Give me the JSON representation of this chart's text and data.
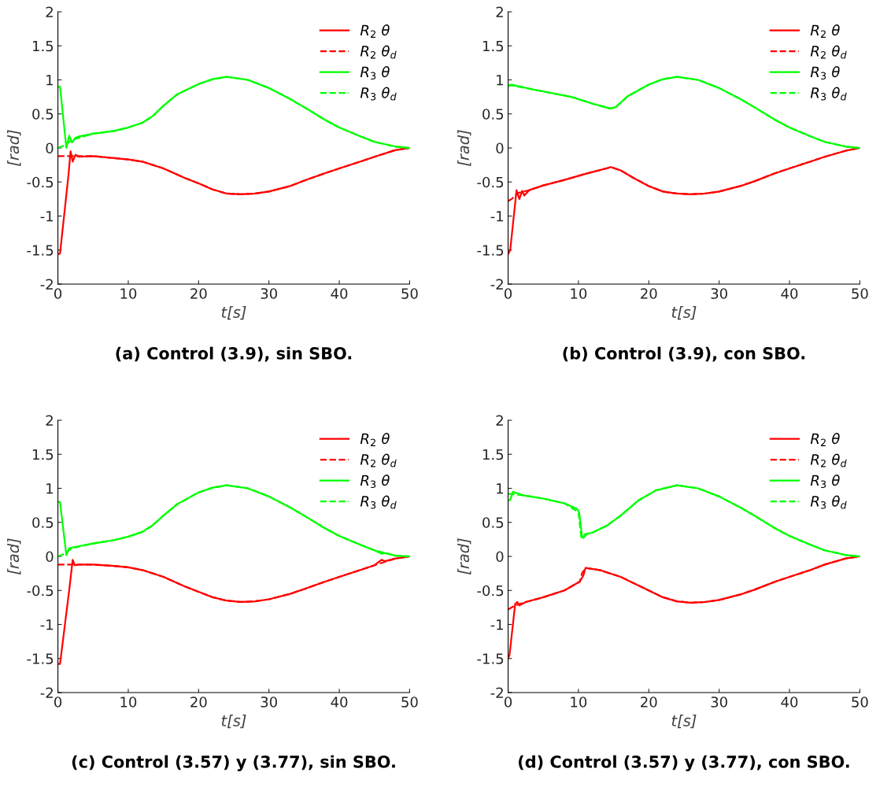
{
  "chart_data": [
    {
      "type": "line",
      "title": "(a) Control (3.9), sin SBO.",
      "xlabel": "t[s]",
      "ylabel": "[rad]",
      "xlim": [
        0,
        50
      ],
      "ylim": [
        -2,
        2
      ],
      "xticks": [
        0,
        10,
        20,
        30,
        40,
        50
      ],
      "yticks": [
        -2,
        -1.5,
        -1,
        -0.5,
        0,
        0.5,
        1,
        1.5,
        2
      ],
      "legend": "top right",
      "grid": false,
      "series": [
        {
          "name": "R$_{2}$ θ",
          "color": "#ff0000",
          "line_style": "solid",
          "x": [
            0,
            0.3,
            1.5,
            1.8,
            2.1,
            2.5,
            3,
            5,
            8,
            10,
            12,
            15,
            18,
            20,
            22,
            24,
            26,
            28,
            30,
            33,
            35,
            38,
            40,
            43,
            45,
            48,
            50
          ],
          "values": [
            -1.56,
            -1.55,
            -0.4,
            -0.05,
            -0.2,
            -0.1,
            -0.13,
            -0.12,
            -0.15,
            -0.17,
            -0.2,
            -0.3,
            -0.44,
            -0.52,
            -0.61,
            -0.67,
            -0.68,
            -0.67,
            -0.64,
            -0.56,
            -0.48,
            -0.37,
            -0.3,
            -0.2,
            -0.13,
            -0.03,
            0
          ]
        },
        {
          "name": "R$_{2}$ θ$_{d}$",
          "color": "#ff0000",
          "line_style": "dashed",
          "x": [
            0,
            2,
            5,
            8,
            10,
            12,
            15,
            18,
            20,
            22,
            24,
            26,
            28,
            30,
            33,
            35,
            38,
            40,
            43,
            45,
            48,
            50
          ],
          "values": [
            -0.12,
            -0.12,
            -0.12,
            -0.15,
            -0.17,
            -0.2,
            -0.3,
            -0.44,
            -0.52,
            -0.61,
            -0.67,
            -0.68,
            -0.67,
            -0.64,
            -0.56,
            -0.48,
            -0.37,
            -0.3,
            -0.2,
            -0.13,
            -0.03,
            0
          ]
        },
        {
          "name": "R$_{3}$ θ",
          "color": "#00ff00",
          "line_style": "solid",
          "x": [
            0,
            0.3,
            1.2,
            1.6,
            2,
            2.5,
            3,
            5,
            8,
            10,
            12,
            13.5,
            15,
            17,
            20,
            22,
            24,
            27,
            30,
            33,
            35,
            38,
            40,
            43,
            45,
            48,
            50
          ],
          "values": [
            0.9,
            0.9,
            0,
            0.18,
            0.08,
            0.15,
            0.17,
            0.21,
            0.25,
            0.3,
            0.37,
            0.47,
            0.62,
            0.79,
            0.94,
            1.01,
            1.045,
            1.0,
            0.88,
            0.72,
            0.6,
            0.41,
            0.3,
            0.17,
            0.09,
            0.02,
            0
          ]
        },
        {
          "name": "R$_{3}$ θ$_{d}$",
          "color": "#00ff00",
          "line_style": "dashed",
          "x": [
            0,
            1,
            2,
            5,
            8,
            10,
            12,
            13.5,
            15,
            17,
            20,
            22,
            24,
            27,
            30,
            33,
            35,
            38,
            40,
            43,
            45,
            48,
            50
          ],
          "values": [
            0,
            0.04,
            0.12,
            0.21,
            0.25,
            0.3,
            0.37,
            0.47,
            0.62,
            0.79,
            0.94,
            1.01,
            1.045,
            1.0,
            0.88,
            0.72,
            0.6,
            0.41,
            0.3,
            0.17,
            0.09,
            0.02,
            0
          ]
        }
      ]
    },
    {
      "type": "line",
      "title": "(b) Control (3.9), con SBO.",
      "xlabel": "t[s]",
      "ylabel": "[rad]",
      "xlim": [
        0,
        50
      ],
      "ylim": [
        -2,
        2
      ],
      "xticks": [
        0,
        10,
        20,
        30,
        40,
        50
      ],
      "yticks": [
        -2,
        -1.5,
        -1,
        -0.5,
        0,
        0.5,
        1,
        1.5,
        2
      ],
      "legend": "top right",
      "grid": false,
      "series": [
        {
          "name": "R$_{2}$ θ",
          "color": "#ff0000",
          "line_style": "solid",
          "x": [
            0,
            0.3,
            1.2,
            1.6,
            2,
            2.3,
            3,
            5,
            8,
            11,
            14,
            14.6,
            16,
            18,
            20,
            22,
            24,
            26,
            28,
            30,
            33,
            35,
            38,
            40,
            43,
            45,
            48,
            50
          ],
          "values": [
            -1.56,
            -1.5,
            -0.62,
            -0.75,
            -0.63,
            -0.7,
            -0.62,
            -0.55,
            -0.47,
            -0.38,
            -0.3,
            -0.28,
            -0.33,
            -0.45,
            -0.56,
            -0.64,
            -0.67,
            -0.68,
            -0.67,
            -0.64,
            -0.56,
            -0.49,
            -0.37,
            -0.3,
            -0.2,
            -0.13,
            -0.04,
            0
          ]
        },
        {
          "name": "R$_{2}$ θ$_{d}$",
          "color": "#ff0000",
          "line_style": "dashed",
          "x": [
            0,
            0.5,
            1.5,
            3,
            5,
            8,
            11,
            14,
            14.6,
            16,
            18,
            20,
            22,
            24,
            26,
            28,
            30,
            33,
            35,
            38,
            40,
            43,
            45,
            48,
            50
          ],
          "values": [
            -0.78,
            -0.75,
            -0.66,
            -0.62,
            -0.55,
            -0.47,
            -0.38,
            -0.3,
            -0.28,
            -0.33,
            -0.45,
            -0.56,
            -0.64,
            -0.67,
            -0.68,
            -0.67,
            -0.64,
            -0.56,
            -0.49,
            -0.37,
            -0.3,
            -0.2,
            -0.13,
            -0.04,
            0
          ]
        },
        {
          "name": "R$_{3}$ θ",
          "color": "#00ff00",
          "line_style": "solid",
          "x": [
            0,
            0.5,
            4,
            9,
            12,
            14.5,
            15.3,
            17,
            20,
            22,
            24,
            27,
            30,
            33,
            35,
            38,
            40,
            43,
            45,
            48,
            50
          ],
          "values": [
            0.92,
            0.93,
            0.85,
            0.75,
            0.65,
            0.58,
            0.6,
            0.76,
            0.93,
            1.01,
            1.045,
            1.0,
            0.88,
            0.72,
            0.6,
            0.41,
            0.3,
            0.17,
            0.09,
            0.02,
            0
          ]
        },
        {
          "name": "R$_{3}$ θ$_{d}$",
          "color": "#00ff00",
          "line_style": "dashed",
          "x": [
            0,
            0.5,
            4,
            9,
            12,
            14.5,
            15.3,
            17,
            20,
            22,
            24,
            27,
            30,
            33,
            35,
            38,
            40,
            43,
            45,
            48,
            50
          ],
          "values": [
            0.91,
            0.92,
            0.85,
            0.75,
            0.65,
            0.58,
            0.6,
            0.76,
            0.93,
            1.01,
            1.045,
            1.0,
            0.88,
            0.72,
            0.6,
            0.41,
            0.3,
            0.17,
            0.09,
            0.02,
            0
          ]
        }
      ]
    },
    {
      "type": "line",
      "title": "(c) Control (3.57) y (3.77), sin SBO.",
      "xlabel": "t[s]",
      "ylabel": "[rad]",
      "xlim": [
        0,
        50
      ],
      "ylim": [
        -2,
        2
      ],
      "xticks": [
        0,
        10,
        20,
        30,
        40,
        50
      ],
      "yticks": [
        -2,
        -1.5,
        -1,
        -0.5,
        0,
        0.5,
        1,
        1.5,
        2
      ],
      "legend": "top right",
      "grid": false,
      "series": [
        {
          "name": "R$_{2}$ θ",
          "color": "#ff0000",
          "line_style": "solid",
          "x": [
            0,
            0.3,
            1.6,
            2.1,
            2.4,
            3,
            5,
            8,
            10,
            12,
            15,
            18,
            20,
            22,
            24,
            26,
            28,
            30,
            33,
            35,
            38,
            40,
            43,
            45,
            46,
            46.5,
            48,
            50
          ],
          "values": [
            -1.58,
            -1.58,
            -0.5,
            -0.05,
            -0.13,
            -0.12,
            -0.12,
            -0.14,
            -0.16,
            -0.2,
            -0.3,
            -0.44,
            -0.52,
            -0.6,
            -0.65,
            -0.67,
            -0.66,
            -0.63,
            -0.55,
            -0.48,
            -0.37,
            -0.3,
            -0.2,
            -0.13,
            -0.05,
            -0.07,
            -0.03,
            0
          ]
        },
        {
          "name": "R$_{2}$ θ$_{d}$",
          "color": "#ff0000",
          "line_style": "dashed",
          "x": [
            0,
            2,
            5,
            8,
            10,
            12,
            15,
            18,
            20,
            22,
            24,
            26,
            28,
            30,
            33,
            35,
            38,
            40,
            43,
            45,
            48,
            50
          ],
          "values": [
            -0.12,
            -0.12,
            -0.12,
            -0.14,
            -0.16,
            -0.2,
            -0.3,
            -0.44,
            -0.52,
            -0.6,
            -0.65,
            -0.67,
            -0.66,
            -0.63,
            -0.55,
            -0.48,
            -0.37,
            -0.3,
            -0.2,
            -0.13,
            -0.03,
            0
          ]
        },
        {
          "name": "R$_{3}$ θ",
          "color": "#00ff00",
          "line_style": "solid",
          "x": [
            0,
            0.3,
            1.2,
            1.6,
            2,
            3,
            5,
            8,
            10,
            12,
            13.5,
            15,
            17,
            20,
            22,
            24,
            27,
            30,
            33,
            35,
            38,
            40,
            43,
            45,
            46,
            46.5,
            48,
            50
          ],
          "values": [
            0.8,
            0.8,
            0.02,
            0.12,
            0.13,
            0.15,
            0.19,
            0.24,
            0.29,
            0.36,
            0.46,
            0.6,
            0.77,
            0.94,
            1.01,
            1.045,
            1.0,
            0.88,
            0.72,
            0.6,
            0.41,
            0.3,
            0.17,
            0.09,
            0.04,
            0.05,
            0.01,
            0
          ]
        },
        {
          "name": "R$_{3}$ θ$_{d}$",
          "color": "#00ff00",
          "line_style": "dashed",
          "x": [
            0,
            1,
            2,
            5,
            8,
            10,
            12,
            13.5,
            15,
            17,
            20,
            22,
            24,
            27,
            30,
            33,
            35,
            38,
            40,
            43,
            45,
            48,
            50
          ],
          "values": [
            0,
            0.04,
            0.12,
            0.19,
            0.24,
            0.29,
            0.36,
            0.46,
            0.6,
            0.77,
            0.94,
            1.01,
            1.045,
            1.0,
            0.88,
            0.72,
            0.6,
            0.41,
            0.3,
            0.17,
            0.09,
            0.01,
            0
          ]
        }
      ]
    },
    {
      "type": "line",
      "title": "(d) Control (3.57) y (3.77), con SBO.",
      "xlabel": "t[s]",
      "ylabel": "[rad]",
      "xlim": [
        0,
        50
      ],
      "ylim": [
        -2,
        2
      ],
      "xticks": [
        0,
        10,
        20,
        30,
        40,
        50
      ],
      "yticks": [
        -2,
        -1.5,
        -1,
        -0.5,
        0,
        0.5,
        1,
        1.5,
        2
      ],
      "legend": "top right",
      "grid": false,
      "series": [
        {
          "name": "R$_{2}$ θ",
          "color": "#ff0000",
          "line_style": "solid",
          "x": [
            0,
            0.2,
            1,
            1.3,
            1.6,
            2.5,
            5,
            8,
            10.2,
            10.7,
            11,
            13,
            16,
            19,
            22,
            24,
            26,
            28,
            30,
            33,
            35,
            38,
            40,
            43,
            45,
            48,
            50
          ],
          "values": [
            -1.5,
            -1.45,
            -0.7,
            -0.67,
            -0.72,
            -0.67,
            -0.6,
            -0.5,
            -0.37,
            -0.28,
            -0.17,
            -0.2,
            -0.3,
            -0.45,
            -0.6,
            -0.66,
            -0.68,
            -0.67,
            -0.64,
            -0.56,
            -0.49,
            -0.37,
            -0.3,
            -0.2,
            -0.12,
            -0.03,
            0
          ]
        },
        {
          "name": "R$_{2}$ θ$_{d}$",
          "color": "#ff0000",
          "line_style": "dashed",
          "x": [
            0,
            0.8,
            1.6,
            2.5,
            5,
            8,
            10.2,
            10.5,
            11,
            13,
            16,
            19,
            22,
            24,
            26,
            28,
            30,
            33,
            35,
            38,
            40,
            43,
            45,
            48,
            50
          ],
          "values": [
            -0.78,
            -0.73,
            -0.7,
            -0.67,
            -0.6,
            -0.5,
            -0.37,
            -0.25,
            -0.17,
            -0.2,
            -0.3,
            -0.45,
            -0.6,
            -0.66,
            -0.68,
            -0.67,
            -0.64,
            -0.56,
            -0.49,
            -0.37,
            -0.3,
            -0.2,
            -0.12,
            -0.03,
            0
          ]
        },
        {
          "name": "R$_{3}$ θ",
          "color": "#00ff00",
          "line_style": "solid",
          "x": [
            0,
            0.3,
            0.7,
            2,
            5,
            8,
            9.8,
            10.1,
            10.5,
            10.7,
            11.2,
            12,
            14,
            16,
            18.5,
            21,
            24,
            27,
            30,
            33,
            35,
            38,
            40,
            43,
            45,
            48,
            50
          ],
          "values": [
            0.82,
            0.83,
            0.95,
            0.9,
            0.85,
            0.78,
            0.7,
            0.65,
            0.3,
            0.27,
            0.33,
            0.35,
            0.45,
            0.6,
            0.82,
            0.97,
            1.045,
            1.0,
            0.88,
            0.72,
            0.6,
            0.41,
            0.3,
            0.17,
            0.09,
            0.02,
            0
          ]
        },
        {
          "name": "R$_{3}$ θ$_{d}$",
          "color": "#00ff00",
          "line_style": "dashed",
          "x": [
            0,
            2,
            5,
            8,
            10,
            10.4,
            11,
            12,
            14,
            16,
            18.5,
            21,
            24,
            27,
            30,
            33,
            35,
            38,
            40,
            43,
            45,
            48,
            50
          ],
          "values": [
            0.92,
            0.9,
            0.85,
            0.78,
            0.65,
            0.28,
            0.33,
            0.35,
            0.45,
            0.6,
            0.82,
            0.97,
            1.045,
            1.0,
            0.88,
            0.72,
            0.6,
            0.41,
            0.3,
            0.17,
            0.09,
            0.02,
            0
          ]
        }
      ]
    }
  ]
}
